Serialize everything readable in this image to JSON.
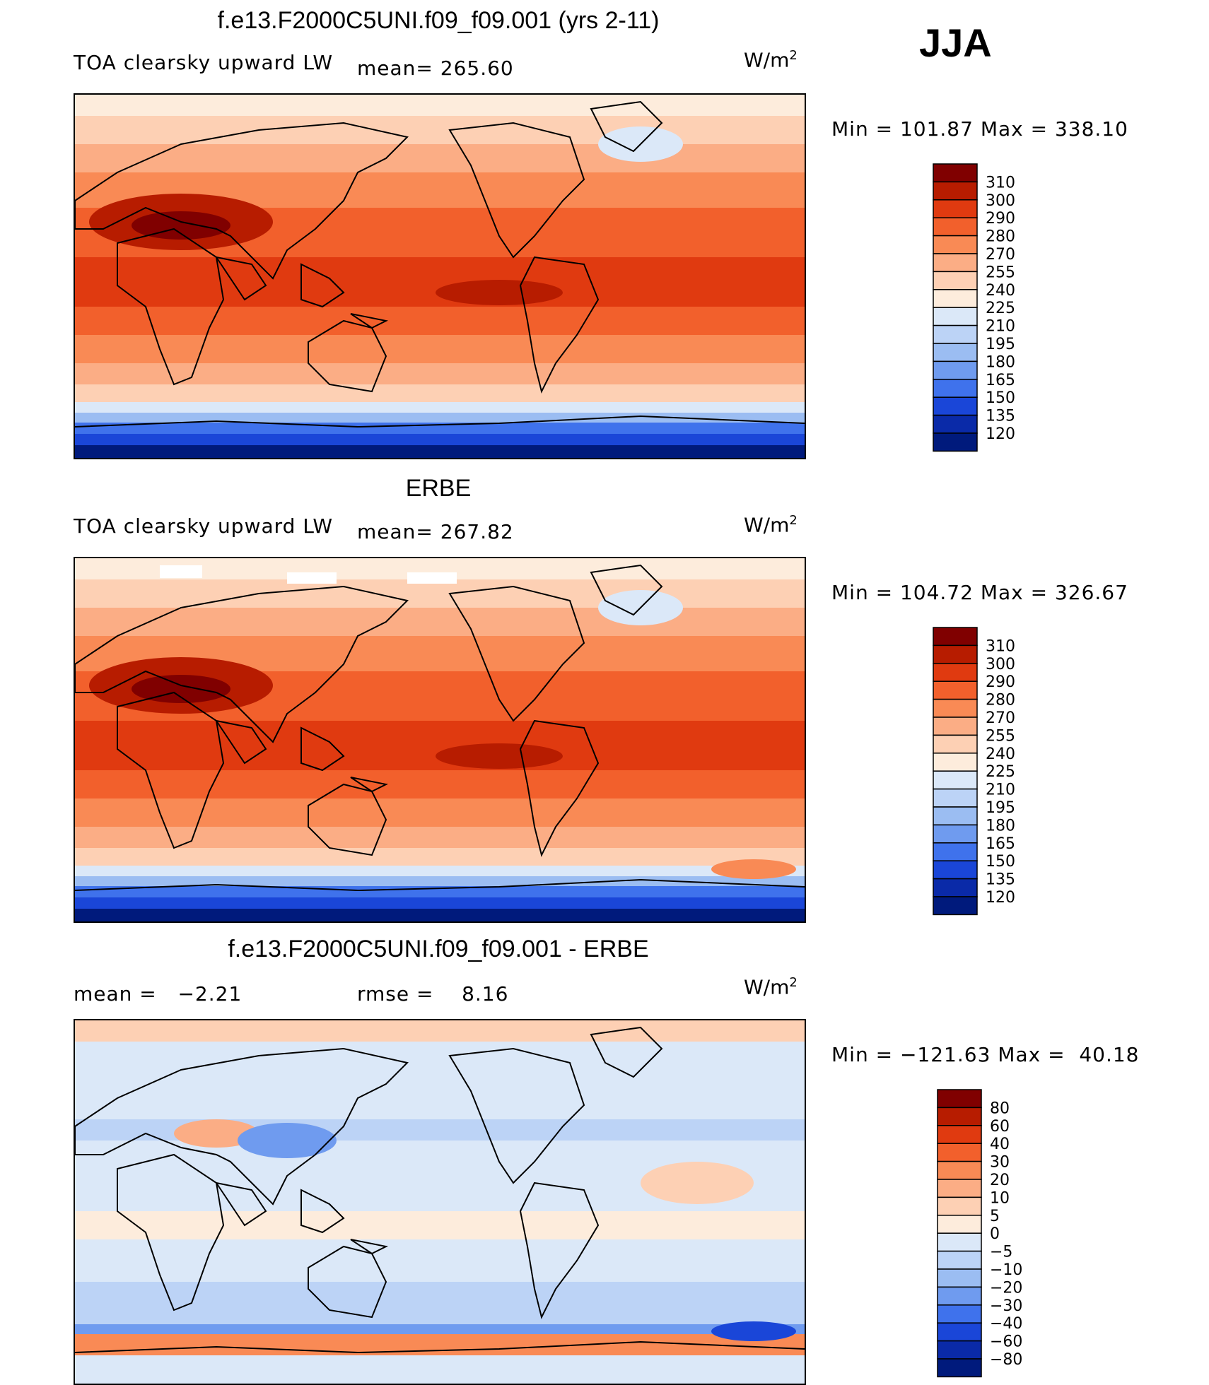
{
  "season": "JJA",
  "panels": [
    {
      "title": "f.e13.F2000C5UNI.f09_f09.001 (yrs 2-11)",
      "left_label": "TOA clearsky upward LW",
      "center_label": "mean= 265.60",
      "units": "W/m",
      "units_sup": "2",
      "minmax": "Min = 101.87 Max = 338.10",
      "colorbar_labels": [
        "310",
        "300",
        "290",
        "280",
        "270",
        "255",
        "240",
        "225",
        "210",
        "195",
        "180",
        "165",
        "150",
        "135",
        "120"
      ],
      "variant": "model"
    },
    {
      "title": "ERBE",
      "left_label": "TOA clearsky upward LW",
      "center_label": "mean= 267.82",
      "units": "W/m",
      "units_sup": "2",
      "minmax": "Min = 104.72 Max = 326.67",
      "colorbar_labels": [
        "310",
        "300",
        "290",
        "280",
        "270",
        "255",
        "240",
        "225",
        "210",
        "195",
        "180",
        "165",
        "150",
        "135",
        "120"
      ],
      "variant": "obs"
    },
    {
      "title": "f.e13.F2000C5UNI.f09_f09.001 - ERBE",
      "left_label": "mean =   −2.21",
      "center_label": "rmse =    8.16",
      "units": "W/m",
      "units_sup": "2",
      "minmax": "Min = −121.63 Max =  40.18",
      "colorbar_labels": [
        "80",
        "60",
        "40",
        "30",
        "20",
        "10",
        "5",
        "0",
        "−5",
        "−10",
        "−20",
        "−30",
        "−40",
        "−60",
        "−80"
      ],
      "variant": "diff"
    }
  ],
  "colors": {
    "abs_scale": [
      "#800000",
      "#b71c00",
      "#e03a10",
      "#f2602c",
      "#f98a55",
      "#fbad85",
      "#fdd0b4",
      "#fdecdc",
      "#dbe8f8",
      "#bcd3f6",
      "#9bbdf2",
      "#6f9bef",
      "#3f72ec",
      "#1a46d8",
      "#0a2aa8",
      "#001a7c"
    ],
    "diff_scale": [
      "#800000",
      "#b71c00",
      "#e03a10",
      "#f2602c",
      "#f98a55",
      "#fbad85",
      "#fdd0b4",
      "#fdecdc",
      "#dbe8f8",
      "#bcd3f6",
      "#9bbdf2",
      "#6f9bef",
      "#3f72ec",
      "#1a46d8",
      "#0a2aa8",
      "#001a7c"
    ],
    "coastline": "#000000"
  }
}
